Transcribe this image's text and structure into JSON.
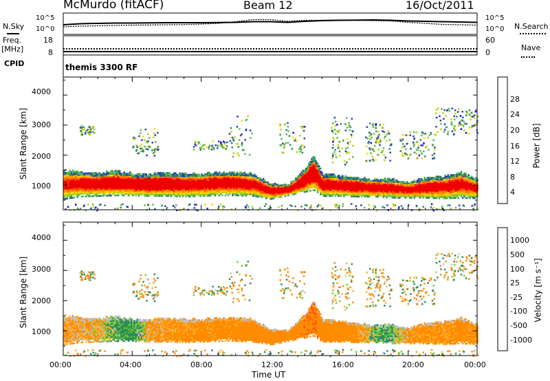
{
  "header": {
    "station": "McMurdo (fitACF)",
    "beam": "Beam 12",
    "date": "16/Oct/2011"
  },
  "noise_panel": {
    "left_label": "N.Sky",
    "right_label": "N.Search",
    "left_ticks": [
      "10^5",
      "10^0"
    ],
    "right_ticks": [
      "10^5",
      "10^0"
    ]
  },
  "freq_panel": {
    "left_label_1": "Freq.",
    "left_label_2": "[MHz]",
    "left_ticks": [
      "18",
      "8"
    ],
    "right_label": "Nave",
    "right_ticks": [
      "60",
      "0"
    ]
  },
  "cpid": {
    "label": "CPID",
    "program": "themis 3300 RF"
  },
  "power_panel": {
    "ylabel": "Slant Range [km]",
    "yticks": [
      "4000",
      "3000",
      "2000",
      "1000"
    ],
    "colorbar_label": "Power [dB]",
    "colorbar_ticks": [
      "28",
      "24",
      "20",
      "16",
      "12",
      "8",
      "4"
    ]
  },
  "velocity_panel": {
    "ylabel": "Slant Range [km]",
    "yticks": [
      "4000",
      "3000",
      "2000",
      "1000"
    ],
    "colorbar_label": "Velocity [m s⁻¹]",
    "colorbar_ticks": [
      "1000",
      "500",
      "100",
      "25",
      "-25",
      "-100",
      "-500",
      "-1000"
    ]
  },
  "xaxis": {
    "ticks": [
      "00:00",
      "04:00",
      "08:00",
      "12:00",
      "16:00",
      "20:00",
      "00:00"
    ],
    "label": "Time UT"
  },
  "chart_data": {
    "type": "heatmap",
    "title": "McMurdo (fitACF)",
    "xlabel": "Time UT",
    "ylabel": "Slant Range [km]",
    "xlim_hours": [
      0,
      24
    ],
    "ylim_km": [
      180,
      4600
    ],
    "power_scale_db": [
      0,
      32
    ],
    "velocity_scale_ms": [
      -1250,
      1250
    ],
    "power_colors": [
      "#0000ff",
      "#2c3fb4",
      "#2f8a5a",
      "#55ba55",
      "#b8d400",
      "#ffd200",
      "#ff9600",
      "#ff5a00",
      "#ee0000"
    ],
    "velocity_colors": [
      "#1e32c8",
      "#5068c8",
      "#2e8b57",
      "#6acd32",
      "#c0c0c0",
      "#ffb030",
      "#ff8c00",
      "#ff5000",
      "#e60000"
    ],
    "main_band": {
      "time_hours": [
        0,
        1,
        2,
        3,
        4,
        5,
        6,
        7,
        8,
        9,
        10,
        11,
        12,
        13,
        14,
        14.5,
        15,
        16,
        17,
        18,
        19,
        20,
        21,
        22,
        23,
        24
      ],
      "lower_km": [
        520,
        600,
        620,
        640,
        640,
        620,
        620,
        600,
        620,
        640,
        640,
        620,
        520,
        640,
        760,
        820,
        620,
        620,
        600,
        600,
        560,
        560,
        560,
        540,
        560,
        540
      ],
      "upper_km": [
        1500,
        1450,
        1420,
        1480,
        1400,
        1380,
        1420,
        1380,
        1380,
        1450,
        1450,
        1380,
        1050,
        1000,
        1550,
        2000,
        1380,
        1320,
        1250,
        1200,
        1200,
        1100,
        1250,
        1300,
        1450,
        1200
      ],
      "peak_power_db": [
        24,
        26,
        28,
        28,
        30,
        30,
        30,
        28,
        28,
        28,
        28,
        26,
        28,
        30,
        30,
        30,
        28,
        28,
        28,
        28,
        26,
        26,
        28,
        26,
        26,
        24
      ],
      "mean_velocity_ms": [
        -120,
        -100,
        -80,
        120,
        180,
        -120,
        -150,
        -180,
        -200,
        -200,
        -220,
        -250,
        -300,
        -320,
        -400,
        -450,
        -300,
        -250,
        -200,
        80,
        120,
        -150,
        -180,
        -150,
        -200,
        -200
      ]
    },
    "noise_sky_log10": [
      2.4,
      2.7,
      2.8,
      2.9,
      2.9,
      2.95,
      3.0,
      3.0,
      3.0,
      3.05,
      3.1,
      3.3,
      3.3,
      3.1,
      3.4,
      3.6,
      3.7,
      3.75,
      3.8,
      3.7,
      3.5,
      3.4,
      3.3,
      3.2,
      3.1
    ],
    "noise_search_log10": [
      1.8,
      2.0,
      2.1,
      2.2,
      2.3,
      2.35,
      2.4,
      2.45,
      2.6,
      2.8,
      3.3,
      3.9,
      3.9,
      3.4,
      3.7,
      3.7,
      3.8,
      3.7,
      3.6,
      3.5,
      3.1,
      2.8,
      2.5,
      2.4,
      2.3
    ],
    "frequency_mhz": 11,
    "nave": 20
  }
}
